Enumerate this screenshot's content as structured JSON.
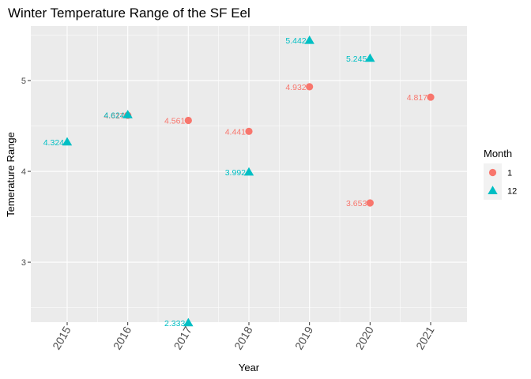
{
  "chart_data": {
    "type": "scatter",
    "title": "Winter Temperature Range of the SF Eel",
    "xlabel": "Year",
    "ylabel": "Temerature Range",
    "xlim": [
      2014.4,
      2021.6
    ],
    "ylim": [
      2.34,
      5.6
    ],
    "x_ticks": [
      "2015",
      "2016",
      "2017",
      "2018",
      "2019",
      "2020",
      "2021"
    ],
    "y_ticks": [
      "3",
      "4",
      "5"
    ],
    "grid": true,
    "legend": {
      "title": "Month",
      "position": "right"
    },
    "series": [
      {
        "name": "1",
        "color": "#F8766D",
        "shape": "circle",
        "points": [
          {
            "x": 2016,
            "y": 4.617,
            "label": "4.617"
          },
          {
            "x": 2017,
            "y": 4.561,
            "label": "4.561"
          },
          {
            "x": 2018,
            "y": 4.441,
            "label": "4.441"
          },
          {
            "x": 2019,
            "y": 4.932,
            "label": "4.932"
          },
          {
            "x": 2020,
            "y": 3.653,
            "label": "3.653"
          },
          {
            "x": 2021,
            "y": 4.817,
            "label": "4.817"
          }
        ]
      },
      {
        "name": "12",
        "color": "#00BFC4",
        "shape": "triangle",
        "points": [
          {
            "x": 2015,
            "y": 4.324,
            "label": "4.324"
          },
          {
            "x": 2016,
            "y": 4.624,
            "label": "4.624"
          },
          {
            "x": 2017,
            "y": 2.333,
            "label": "2.333"
          },
          {
            "x": 2018,
            "y": 3.992,
            "label": "3.992"
          },
          {
            "x": 2019,
            "y": 5.442,
            "label": "5.442"
          },
          {
            "x": 2020,
            "y": 5.245,
            "label": "5.245"
          }
        ]
      }
    ]
  }
}
